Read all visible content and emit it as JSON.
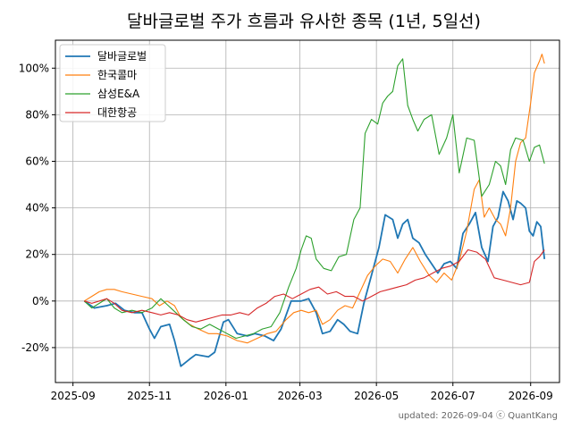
{
  "chart_data": {
    "type": "line",
    "title": "달바글로벌 주가 흐름과 유사한 종목 (1년, 5일선)",
    "xlabel": "",
    "ylabel": "",
    "x_ticks": [
      "2025-09",
      "2025-11",
      "2026-01",
      "2026-03",
      "2026-05",
      "2026-07",
      "2026-09"
    ],
    "y_ticks": [
      "-20%",
      "0%",
      "20%",
      "40%",
      "60%",
      "80%",
      "100%"
    ],
    "y_tick_values": [
      -20,
      0,
      20,
      40,
      60,
      80,
      100
    ],
    "x_range": [
      "2025-08-18",
      "2026-09-24"
    ],
    "ylim": [
      -35,
      112
    ],
    "grid": true,
    "legend_position": "top-left",
    "footer": "updated: 2026-09-04 ⓒ QuantKang",
    "series": [
      {
        "name": "달바글로벌",
        "color": "#1f77b4",
        "points": [
          [
            "2025-09-10",
            0
          ],
          [
            "2025-09-18",
            -3
          ],
          [
            "2025-09-28",
            -2
          ],
          [
            "2025-10-05",
            -1
          ],
          [
            "2025-10-12",
            -4
          ],
          [
            "2025-10-20",
            -5
          ],
          [
            "2025-10-26",
            -5
          ],
          [
            "2025-11-01",
            -12
          ],
          [
            "2025-11-05",
            -16
          ],
          [
            "2025-11-10",
            -11
          ],
          [
            "2025-11-17",
            -10
          ],
          [
            "2025-11-21",
            -17
          ],
          [
            "2025-11-26",
            -28
          ],
          [
            "2025-12-03",
            -25
          ],
          [
            "2025-12-08",
            -23
          ],
          [
            "2025-12-18",
            -24
          ],
          [
            "2025-12-23",
            -22
          ],
          [
            "2025-12-30",
            -9
          ],
          [
            "2026-01-03",
            -8
          ],
          [
            "2026-01-10",
            -14
          ],
          [
            "2026-01-18",
            -15
          ],
          [
            "2026-01-24",
            -14
          ],
          [
            "2026-02-01",
            -15
          ],
          [
            "2026-02-08",
            -17
          ],
          [
            "2026-02-14",
            -12
          ],
          [
            "2026-02-22",
            0
          ],
          [
            "2026-03-02",
            0
          ],
          [
            "2026-03-08",
            1
          ],
          [
            "2026-03-14",
            -5
          ],
          [
            "2026-03-19",
            -14
          ],
          [
            "2026-03-25",
            -13
          ],
          [
            "2026-03-31",
            -8
          ],
          [
            "2026-04-05",
            -10
          ],
          [
            "2026-04-10",
            -13
          ],
          [
            "2026-04-16",
            -14
          ],
          [
            "2026-04-21",
            -1
          ],
          [
            "2026-04-27",
            11
          ],
          [
            "2026-05-03",
            23
          ],
          [
            "2026-05-08",
            37
          ],
          [
            "2026-05-14",
            35
          ],
          [
            "2026-05-18",
            27
          ],
          [
            "2026-05-22",
            33
          ],
          [
            "2026-05-26",
            35
          ],
          [
            "2026-05-30",
            27
          ],
          [
            "2026-06-04",
            25
          ],
          [
            "2026-06-09",
            20
          ],
          [
            "2026-06-14",
            16
          ],
          [
            "2026-06-19",
            12
          ],
          [
            "2026-06-24",
            16
          ],
          [
            "2026-06-29",
            17
          ],
          [
            "2026-07-04",
            14
          ],
          [
            "2026-07-09",
            29
          ],
          [
            "2026-07-14",
            33
          ],
          [
            "2026-07-19",
            38
          ],
          [
            "2026-07-24",
            23
          ],
          [
            "2026-07-29",
            17
          ],
          [
            "2026-08-02",
            32
          ],
          [
            "2026-08-06",
            36
          ],
          [
            "2026-08-10",
            47
          ],
          [
            "2026-08-14",
            43
          ],
          [
            "2026-08-18",
            35
          ],
          [
            "2026-08-21",
            43
          ],
          [
            "2026-08-24",
            42
          ],
          [
            "2026-08-28",
            40
          ],
          [
            "2026-08-31",
            30
          ],
          [
            "2026-09-03",
            28
          ],
          [
            "2026-09-06",
            34
          ],
          [
            "2026-09-09",
            32
          ],
          [
            "2026-09-12",
            18
          ]
        ]
      },
      {
        "name": "한국콜마",
        "color": "#ff7f0e",
        "points": [
          [
            "2025-09-10",
            0
          ],
          [
            "2025-09-16",
            2
          ],
          [
            "2025-09-22",
            4
          ],
          [
            "2025-09-28",
            5
          ],
          [
            "2025-10-04",
            5
          ],
          [
            "2025-10-10",
            4
          ],
          [
            "2025-10-18",
            3
          ],
          [
            "2025-10-26",
            2
          ],
          [
            "2025-11-03",
            1
          ],
          [
            "2025-11-09",
            -2
          ],
          [
            "2025-11-15",
            0
          ],
          [
            "2025-11-21",
            -2
          ],
          [
            "2025-11-26",
            -7
          ],
          [
            "2025-12-03",
            -10
          ],
          [
            "2025-12-10",
            -12
          ],
          [
            "2025-12-18",
            -14
          ],
          [
            "2025-12-25",
            -14
          ],
          [
            "2026-01-02",
            -15
          ],
          [
            "2026-01-10",
            -17
          ],
          [
            "2026-01-18",
            -18
          ],
          [
            "2026-01-26",
            -16
          ],
          [
            "2026-02-03",
            -14
          ],
          [
            "2026-02-10",
            -13
          ],
          [
            "2026-02-18",
            -8
          ],
          [
            "2026-02-24",
            -5
          ],
          [
            "2026-03-02",
            -4
          ],
          [
            "2026-03-08",
            -5
          ],
          [
            "2026-03-14",
            -4
          ],
          [
            "2026-03-19",
            -10
          ],
          [
            "2026-03-25",
            -8
          ],
          [
            "2026-03-31",
            -4
          ],
          [
            "2026-04-06",
            -2
          ],
          [
            "2026-04-12",
            -3
          ],
          [
            "2026-04-18",
            4
          ],
          [
            "2026-04-24",
            11
          ],
          [
            "2026-04-30",
            15
          ],
          [
            "2026-05-06",
            18
          ],
          [
            "2026-05-12",
            17
          ],
          [
            "2026-05-18",
            12
          ],
          [
            "2026-05-24",
            18
          ],
          [
            "2026-05-30",
            23
          ],
          [
            "2026-06-05",
            17
          ],
          [
            "2026-06-12",
            11
          ],
          [
            "2026-06-18",
            8
          ],
          [
            "2026-06-24",
            12
          ],
          [
            "2026-06-30",
            9
          ],
          [
            "2026-07-06",
            17
          ],
          [
            "2026-07-12",
            30
          ],
          [
            "2026-07-18",
            48
          ],
          [
            "2026-07-22",
            52
          ],
          [
            "2026-07-26",
            36
          ],
          [
            "2026-07-30",
            40
          ],
          [
            "2026-08-04",
            35
          ],
          [
            "2026-08-08",
            33
          ],
          [
            "2026-08-12",
            28
          ],
          [
            "2026-08-16",
            40
          ],
          [
            "2026-08-20",
            60
          ],
          [
            "2026-08-24",
            68
          ],
          [
            "2026-08-28",
            70
          ],
          [
            "2026-09-01",
            85
          ],
          [
            "2026-09-04",
            98
          ],
          [
            "2026-09-08",
            103
          ],
          [
            "2026-09-10",
            106
          ],
          [
            "2026-09-12",
            102
          ]
        ]
      },
      {
        "name": "삼성E&A",
        "color": "#2ca02c",
        "points": [
          [
            "2025-09-10",
            0
          ],
          [
            "2025-09-16",
            -3
          ],
          [
            "2025-09-22",
            -1
          ],
          [
            "2025-09-28",
            1
          ],
          [
            "2025-10-04",
            -3
          ],
          [
            "2025-10-10",
            -5
          ],
          [
            "2025-10-18",
            -4
          ],
          [
            "2025-10-26",
            -5
          ],
          [
            "2025-11-03",
            -3
          ],
          [
            "2025-11-10",
            1
          ],
          [
            "2025-11-16",
            -2
          ],
          [
            "2025-11-22",
            -5
          ],
          [
            "2025-11-28",
            -8
          ],
          [
            "2025-12-05",
            -11
          ],
          [
            "2025-12-12",
            -12
          ],
          [
            "2025-12-19",
            -10
          ],
          [
            "2025-12-26",
            -12
          ],
          [
            "2026-01-02",
            -14
          ],
          [
            "2026-01-09",
            -16
          ],
          [
            "2026-01-16",
            -15
          ],
          [
            "2026-01-23",
            -14
          ],
          [
            "2026-01-30",
            -12
          ],
          [
            "2026-02-06",
            -11
          ],
          [
            "2026-02-13",
            -5
          ],
          [
            "2026-02-20",
            6
          ],
          [
            "2026-02-26",
            14
          ],
          [
            "2026-03-02",
            22
          ],
          [
            "2026-03-06",
            28
          ],
          [
            "2026-03-10",
            27
          ],
          [
            "2026-03-14",
            18
          ],
          [
            "2026-03-20",
            14
          ],
          [
            "2026-03-26",
            13
          ],
          [
            "2026-04-01",
            19
          ],
          [
            "2026-04-07",
            20
          ],
          [
            "2026-04-13",
            35
          ],
          [
            "2026-04-18",
            40
          ],
          [
            "2026-04-22",
            72
          ],
          [
            "2026-04-27",
            78
          ],
          [
            "2026-05-02",
            76
          ],
          [
            "2026-05-06",
            85
          ],
          [
            "2026-05-10",
            88
          ],
          [
            "2026-05-14",
            90
          ],
          [
            "2026-05-18",
            101
          ],
          [
            "2026-05-22",
            104
          ],
          [
            "2026-05-26",
            84
          ],
          [
            "2026-05-30",
            78
          ],
          [
            "2026-06-03",
            73
          ],
          [
            "2026-06-08",
            78
          ],
          [
            "2026-06-14",
            80
          ],
          [
            "2026-06-20",
            63
          ],
          [
            "2026-06-26",
            70
          ],
          [
            "2026-07-01",
            80
          ],
          [
            "2026-07-06",
            55
          ],
          [
            "2026-07-12",
            70
          ],
          [
            "2026-07-18",
            69
          ],
          [
            "2026-07-24",
            45
          ],
          [
            "2026-07-30",
            50
          ],
          [
            "2026-08-04",
            60
          ],
          [
            "2026-08-08",
            58
          ],
          [
            "2026-08-12",
            50
          ],
          [
            "2026-08-16",
            65
          ],
          [
            "2026-08-20",
            70
          ],
          [
            "2026-08-26",
            69
          ],
          [
            "2026-08-31",
            60
          ],
          [
            "2026-09-04",
            66
          ],
          [
            "2026-09-08",
            67
          ],
          [
            "2026-09-12",
            59
          ]
        ]
      },
      {
        "name": "대한항공",
        "color": "#d62728",
        "points": [
          [
            "2025-09-10",
            0
          ],
          [
            "2025-09-16",
            -1
          ],
          [
            "2025-09-22",
            0
          ],
          [
            "2025-09-28",
            1
          ],
          [
            "2025-10-04",
            -1
          ],
          [
            "2025-10-10",
            -4
          ],
          [
            "2025-10-18",
            -5
          ],
          [
            "2025-10-26",
            -4
          ],
          [
            "2025-11-03",
            -5
          ],
          [
            "2025-11-10",
            -6
          ],
          [
            "2025-11-17",
            -5
          ],
          [
            "2025-11-24",
            -6
          ],
          [
            "2025-12-01",
            -8
          ],
          [
            "2025-12-08",
            -9
          ],
          [
            "2025-12-15",
            -8
          ],
          [
            "2025-12-22",
            -7
          ],
          [
            "2025-12-29",
            -6
          ],
          [
            "2026-01-05",
            -6
          ],
          [
            "2026-01-12",
            -5
          ],
          [
            "2026-01-19",
            -6
          ],
          [
            "2026-01-26",
            -3
          ],
          [
            "2026-02-02",
            -1
          ],
          [
            "2026-02-09",
            2
          ],
          [
            "2026-02-16",
            3
          ],
          [
            "2026-02-23",
            1
          ],
          [
            "2026-03-02",
            3
          ],
          [
            "2026-03-09",
            5
          ],
          [
            "2026-03-16",
            6
          ],
          [
            "2026-03-23",
            3
          ],
          [
            "2026-03-30",
            4
          ],
          [
            "2026-04-06",
            2
          ],
          [
            "2026-04-13",
            2
          ],
          [
            "2026-04-20",
            0
          ],
          [
            "2026-04-27",
            2
          ],
          [
            "2026-05-04",
            4
          ],
          [
            "2026-05-11",
            5
          ],
          [
            "2026-05-18",
            6
          ],
          [
            "2026-05-25",
            7
          ],
          [
            "2026-06-01",
            9
          ],
          [
            "2026-06-08",
            10
          ],
          [
            "2026-06-15",
            12
          ],
          [
            "2026-06-22",
            14
          ],
          [
            "2026-06-29",
            15
          ],
          [
            "2026-07-06",
            17
          ],
          [
            "2026-07-13",
            22
          ],
          [
            "2026-07-20",
            21
          ],
          [
            "2026-07-27",
            18
          ],
          [
            "2026-08-03",
            10
          ],
          [
            "2026-08-10",
            9
          ],
          [
            "2026-08-17",
            8
          ],
          [
            "2026-08-24",
            7
          ],
          [
            "2026-08-31",
            8
          ],
          [
            "2026-09-04",
            17
          ],
          [
            "2026-09-08",
            19
          ],
          [
            "2026-09-12",
            22
          ]
        ]
      }
    ]
  }
}
